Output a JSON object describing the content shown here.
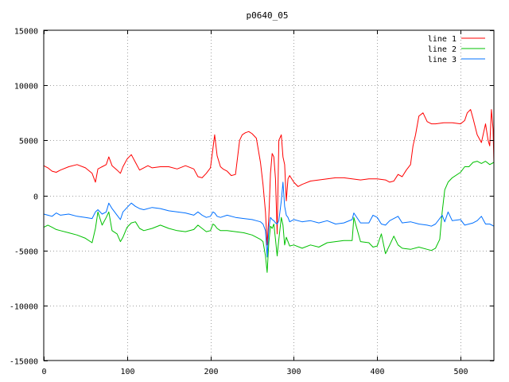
{
  "chart_data": {
    "type": "line",
    "title": "p0640_05",
    "xlabel": "",
    "ylabel": "",
    "xlim": [
      0,
      540
    ],
    "ylim": [
      -15000,
      15000
    ],
    "xticks": [
      0,
      100,
      200,
      300,
      400,
      500
    ],
    "yticks": [
      -15000,
      -10000,
      -5000,
      0,
      5000,
      10000,
      15000
    ],
    "grid": true,
    "legend_position": "top-right",
    "series": [
      {
        "name": "line 1",
        "color": "#ff0000",
        "x": [
          0,
          5,
          10,
          15,
          20,
          30,
          40,
          50,
          58,
          62,
          65,
          70,
          75,
          78,
          82,
          88,
          92,
          95,
          100,
          105,
          110,
          115,
          120,
          125,
          130,
          140,
          150,
          160,
          170,
          180,
          185,
          190,
          195,
          200,
          203,
          205,
          208,
          212,
          215,
          220,
          225,
          230,
          235,
          238,
          242,
          246,
          250,
          255,
          260,
          263,
          266,
          268,
          270,
          272,
          274,
          276,
          278,
          280,
          282,
          285,
          287,
          289,
          291,
          293,
          295,
          300,
          305,
          310,
          320,
          330,
          340,
          350,
          360,
          370,
          380,
          390,
          400,
          410,
          415,
          420,
          425,
          430,
          435,
          440,
          443,
          446,
          450,
          455,
          460,
          465,
          470,
          480,
          490,
          500,
          505,
          508,
          512,
          515,
          520,
          525,
          530,
          533,
          535,
          537,
          539,
          540
        ],
        "y": [
          2700,
          2500,
          2200,
          2100,
          2300,
          2600,
          2800,
          2500,
          2000,
          1200,
          2400,
          2600,
          2800,
          3500,
          2700,
          2300,
          2000,
          2600,
          3300,
          3700,
          3000,
          2300,
          2500,
          2700,
          2500,
          2600,
          2600,
          2400,
          2700,
          2400,
          1700,
          1600,
          2000,
          2500,
          4300,
          5500,
          3600,
          2600,
          2400,
          2200,
          1800,
          1900,
          5000,
          5500,
          5700,
          5800,
          5600,
          5200,
          3000,
          1000,
          -1500,
          -4500,
          -2000,
          2000,
          3800,
          3500,
          1500,
          -3500,
          5000,
          5500,
          3500,
          2800,
          -500,
          1500,
          1800,
          1200,
          800,
          1000,
          1300,
          1400,
          1500,
          1600,
          1600,
          1500,
          1400,
          1500,
          1500,
          1400,
          1200,
          1300,
          1900,
          1700,
          2300,
          2800,
          4500,
          5500,
          7200,
          7500,
          6700,
          6500,
          6500,
          6600,
          6600,
          6500,
          6800,
          7500,
          7800,
          7000,
          5500,
          4800,
          6500,
          5000,
          4500,
          7800,
          6000,
          2900
        ],
        "values_note_hidden": ""
      },
      {
        "name": "line 2",
        "color": "#00c000",
        "x": [
          0,
          5,
          10,
          15,
          20,
          30,
          40,
          50,
          58,
          62,
          65,
          70,
          75,
          78,
          82,
          88,
          92,
          95,
          100,
          105,
          110,
          115,
          120,
          130,
          140,
          150,
          160,
          170,
          180,
          185,
          190,
          195,
          200,
          203,
          205,
          208,
          212,
          220,
          230,
          240,
          250,
          255,
          260,
          263,
          266,
          268,
          270,
          272,
          274,
          276,
          278,
          280,
          282,
          285,
          287,
          289,
          291,
          293,
          295,
          300,
          310,
          320,
          330,
          340,
          350,
          360,
          370,
          372,
          380,
          390,
          395,
          400,
          405,
          410,
          415,
          420,
          425,
          430,
          440,
          450,
          460,
          465,
          470,
          475,
          478,
          481,
          485,
          490,
          500,
          505,
          510,
          515,
          520,
          525,
          530,
          535,
          540
        ],
        "y": [
          -2900,
          -2700,
          -2900,
          -3100,
          -3200,
          -3400,
          -3600,
          -3900,
          -4300,
          -3000,
          -1500,
          -2700,
          -2000,
          -1500,
          -3200,
          -3500,
          -4200,
          -3800,
          -2900,
          -2500,
          -2400,
          -3000,
          -3200,
          -3000,
          -2700,
          -3000,
          -3200,
          -3300,
          -3100,
          -2700,
          -3000,
          -3300,
          -3200,
          -2600,
          -2700,
          -3000,
          -3200,
          -3200,
          -3300,
          -3400,
          -3600,
          -3800,
          -4000,
          -4200,
          -5500,
          -7000,
          -4300,
          -2800,
          -3000,
          -2600,
          -4000,
          -5500,
          -4000,
          -2000,
          -2700,
          -4500,
          -3800,
          -4200,
          -4600,
          -4500,
          -4800,
          -4500,
          -4700,
          -4300,
          -4200,
          -4100,
          -4100,
          -2000,
          -4200,
          -4300,
          -4700,
          -4600,
          -3500,
          -5300,
          -4500,
          -3700,
          -4500,
          -4800,
          -4900,
          -4700,
          -4900,
          -5000,
          -4800,
          -4000,
          -1500,
          500,
          1200,
          1600,
          2100,
          2600,
          2600,
          3000,
          3100,
          2900,
          3100,
          2800,
          3000
        ]
      },
      {
        "name": "line 3",
        "color": "#0070ff",
        "x": [
          0,
          5,
          10,
          15,
          20,
          30,
          40,
          50,
          58,
          62,
          65,
          70,
          75,
          78,
          82,
          88,
          92,
          95,
          100,
          105,
          110,
          115,
          120,
          130,
          140,
          150,
          160,
          170,
          180,
          185,
          190,
          195,
          200,
          203,
          205,
          208,
          212,
          220,
          230,
          240,
          250,
          255,
          260,
          263,
          266,
          268,
          270,
          272,
          274,
          276,
          278,
          280,
          282,
          285,
          287,
          289,
          291,
          293,
          295,
          300,
          310,
          320,
          330,
          340,
          350,
          360,
          370,
          372,
          380,
          390,
          395,
          400,
          405,
          410,
          415,
          420,
          425,
          430,
          440,
          450,
          460,
          465,
          470,
          475,
          478,
          481,
          485,
          490,
          500,
          505,
          510,
          515,
          520,
          525,
          530,
          535,
          540
        ],
        "y": [
          -1700,
          -1800,
          -1900,
          -1600,
          -1800,
          -1700,
          -1900,
          -2000,
          -2100,
          -1500,
          -1300,
          -1700,
          -1500,
          -700,
          -1200,
          -1800,
          -2200,
          -1500,
          -1100,
          -700,
          -1000,
          -1200,
          -1300,
          -1100,
          -1200,
          -1400,
          -1500,
          -1600,
          -1800,
          -1500,
          -1800,
          -2000,
          -1900,
          -1500,
          -1600,
          -1900,
          -2000,
          -1800,
          -2000,
          -2100,
          -2200,
          -2300,
          -2400,
          -2600,
          -3200,
          -5600,
          -3000,
          -2000,
          -2200,
          -2300,
          -2500,
          -2600,
          -2300,
          -500,
          1200,
          -1000,
          -1800,
          -2000,
          -2400,
          -2200,
          -2400,
          -2300,
          -2500,
          -2300,
          -2600,
          -2500,
          -2200,
          -1600,
          -2500,
          -2500,
          -1800,
          -2000,
          -2600,
          -2700,
          -2300,
          -2100,
          -1900,
          -2500,
          -2400,
          -2600,
          -2700,
          -2800,
          -2600,
          -2100,
          -1800,
          -2400,
          -1500,
          -2300,
          -2200,
          -2700,
          -2600,
          -2500,
          -2300,
          -1900,
          -2600,
          -2600,
          -2800
        ]
      }
    ]
  }
}
